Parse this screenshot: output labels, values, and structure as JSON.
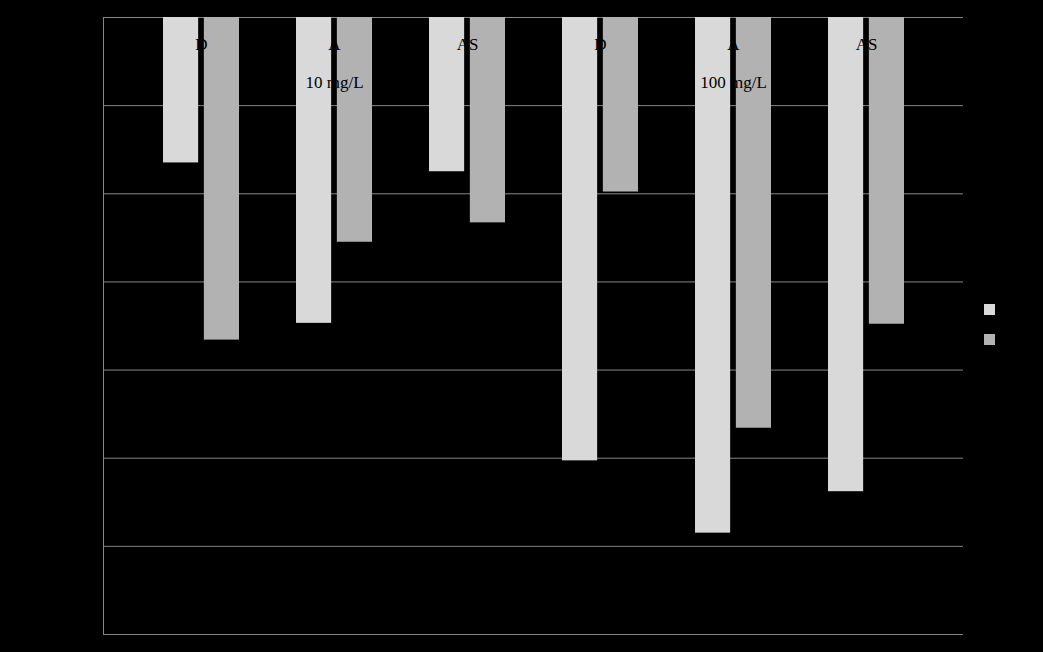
{
  "chart_data": {
    "type": "bar",
    "categories": [
      "D",
      "A",
      "AS",
      "D",
      "A",
      "AS"
    ],
    "series": [
      {
        "color": "#d9d9d9",
        "values": [
          -1.65,
          -3.47,
          -1.75,
          -5.03,
          -5.85,
          -5.38
        ]
      },
      {
        "color": "#b2b2b2",
        "values": [
          -3.66,
          -2.55,
          -2.33,
          -1.98,
          -4.66,
          -3.48
        ]
      }
    ],
    "annotations": [
      {
        "text": "10 mg/L",
        "at": 1
      },
      {
        "text": "100 mg/L",
        "at": 4
      }
    ],
    "ylim": [
      -7,
      0
    ],
    "yticks": [
      0,
      -1,
      -2,
      -3,
      -4,
      -5,
      -6,
      -7
    ],
    "grid": true,
    "tick_labels": false,
    "legend": "right"
  }
}
